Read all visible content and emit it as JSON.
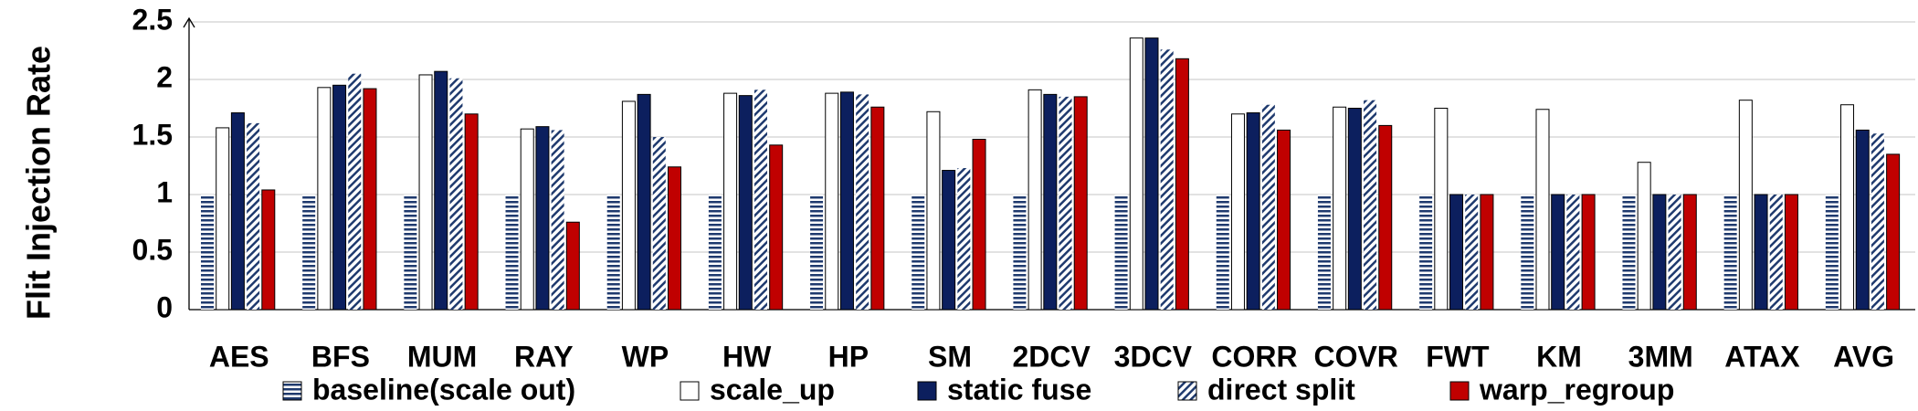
{
  "chart_data": {
    "type": "bar",
    "y_label": "Flit Injection Rate",
    "categories": [
      "AES",
      "BFS",
      "MUM",
      "RAY",
      "WP",
      "HW",
      "HP",
      "SM",
      "2DCV",
      "3DCV",
      "CORR",
      "COVR",
      "FWT",
      "KM",
      "3MM",
      "ATAX",
      "AVG"
    ],
    "series": [
      {
        "name": "baseline(scale out)",
        "color": "#1f3a6e",
        "pattern": "horizontal",
        "values": [
          1,
          1,
          1,
          1,
          1,
          1,
          1,
          1,
          1,
          1,
          1,
          1,
          1,
          1,
          1,
          1,
          1
        ]
      },
      {
        "name": "scale_up",
        "color": "#ffffff",
        "values": [
          1.58,
          1.93,
          2.04,
          1.57,
          1.81,
          1.88,
          1.88,
          1.72,
          1.91,
          2.36,
          1.7,
          1.76,
          1.75,
          1.74,
          1.28,
          1.82,
          1.78
        ]
      },
      {
        "name": "static fuse",
        "color": "#0c1f5e",
        "values": [
          1.71,
          1.95,
          2.07,
          1.59,
          1.87,
          1.86,
          1.89,
          1.21,
          1.87,
          2.36,
          1.71,
          1.75,
          1,
          1,
          1,
          1,
          1.56
        ]
      },
      {
        "name": "direct split",
        "color": "#1f3a6e",
        "pattern": "diagonal",
        "values": [
          1.62,
          2.05,
          2.01,
          1.56,
          1.5,
          1.91,
          1.87,
          1.23,
          1.85,
          2.26,
          1.78,
          1.82,
          1,
          1,
          1,
          1,
          1.53
        ]
      },
      {
        "name": "warp_regroup",
        "color": "#c00000",
        "values": [
          1.04,
          1.92,
          1.7,
          0.76,
          1.24,
          1.43,
          1.76,
          1.48,
          1.85,
          2.18,
          1.56,
          1.6,
          1,
          1,
          1,
          1,
          1.35
        ]
      }
    ],
    "ylim": [
      0,
      2.5
    ],
    "yticks": [
      0,
      0.5,
      1,
      1.5,
      2,
      2.5
    ],
    "grid": true
  }
}
